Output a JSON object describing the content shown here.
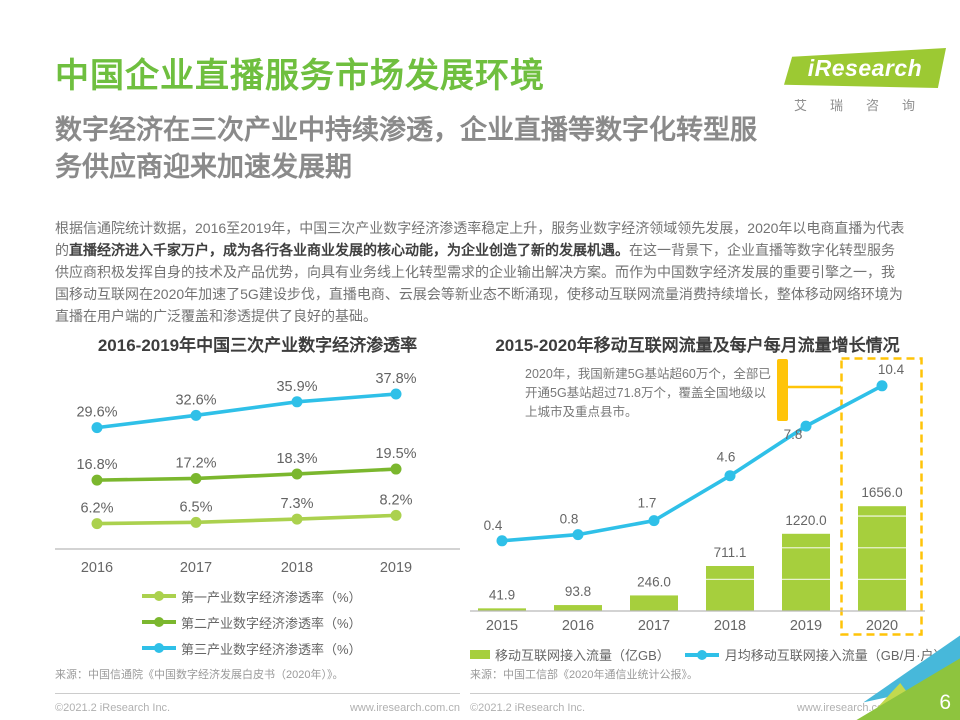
{
  "page": {
    "title": "中国企业直播服务市场发展环境",
    "subtitle_lines": [
      "数字经济在三次产业中持续渗透，企业直播等数字化转型服",
      "务供应商迎来加速发展期"
    ],
    "logo": {
      "brand": "iResearch",
      "brand_cn": "艾瑞咨询"
    },
    "body": {
      "pre": "根据信通院统计数据，2016至2019年，中国三次产业数字经济渗透率稳定上升，服务业数字经济领域领先发展，2020年以电商直播为代表的",
      "bold": "直播经济进入千家万户，成为各行各业商业发展的核心动能，为企业创造了新的发展机遇。",
      "post": "在这一背景下，企业直播等数字化转型服务供应商积极发挥自身的技术及产品优势，向具有业务线上化转型需求的企业输出解决方案。而作为中国数字经济发展的重要引擎之一，我国移动互联网在2020年加速了5G建设步伐，直播电商、云展会等新业态不断涌现，使移动互联网流量消费持续增长，整体移动网络环境为直播在用户端的广泛覆盖和渗透提供了良好的基础。"
    }
  },
  "footer": {
    "copyright": "©2021.2 iResearch Inc.",
    "site": "www.iresearch.com.cn",
    "page_number": "6"
  },
  "chart_data": [
    {
      "type": "line",
      "title": "2016-2019年中国三次产业数字经济渗透率",
      "categories": [
        "2016",
        "2017",
        "2018",
        "2019"
      ],
      "series": [
        {
          "name": "第一产业数字经济渗透率（%）",
          "values": [
            6.2,
            6.5,
            7.3,
            8.2
          ],
          "color": "#abd14e"
        },
        {
          "name": "第二产业数字经济渗透率（%）",
          "values": [
            16.8,
            17.2,
            18.3,
            19.5
          ],
          "color": "#7bb72e"
        },
        {
          "name": "第三产业数字经济渗透率（%）",
          "values": [
            29.6,
            32.6,
            35.9,
            37.8
          ],
          "color": "#2fc0e8"
        }
      ],
      "ylim": [
        0,
        45
      ],
      "grid": false,
      "legend_position": "bottom",
      "source": "来源：中国信通院《中国数字经济发展白皮书（2020年）》。"
    },
    {
      "type": "bar+line",
      "title": "2015-2020年移动互联网流量及每户每月流量增长情况",
      "categories": [
        "2015",
        "2016",
        "2017",
        "2018",
        "2019",
        "2020"
      ],
      "series": [
        {
          "name": "移动互联网接入流量（亿GB）",
          "type": "bar",
          "values": [
            41.9,
            93.8,
            246.0,
            711.1,
            1220.0,
            1656.0
          ],
          "color": "#a6cf3d",
          "axis_range": [
            0,
            1700
          ]
        },
        {
          "name": "月均移动互联网接入流量（GB/月·户）",
          "type": "line",
          "values": [
            0.4,
            0.8,
            1.7,
            4.6,
            7.8,
            10.4
          ],
          "color": "#2fc0e8",
          "axis_range": [
            0,
            11
          ]
        }
      ],
      "annotation": "2020年，我国新建5G基站超60万个，全部已开通5G基站超过71.8万个，覆盖全国地级以上城市及重点县市。",
      "highlight_category": "2020",
      "highlight_color": "#FFC408",
      "grid": false,
      "legend_position": "bottom",
      "source": "来源：中国工信部《2020年通信业统计公报》。"
    }
  ]
}
